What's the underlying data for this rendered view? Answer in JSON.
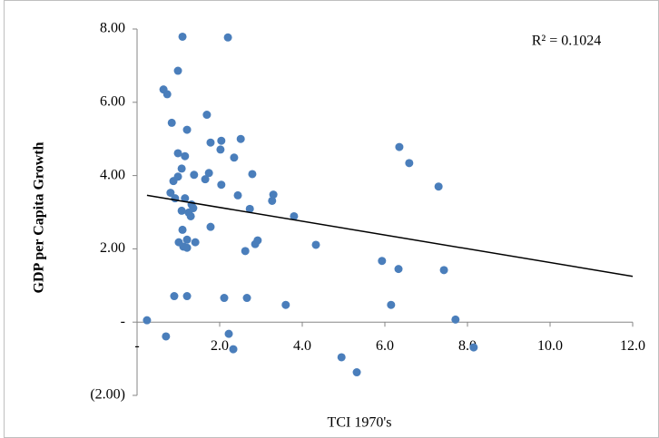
{
  "chart_data": {
    "type": "scatter",
    "x_label": "TCI 1970's",
    "y_label": "GDP per Capita Growth",
    "annotation": "R² = 0.1024",
    "color": "#4a7ebb",
    "x": [
      0.24,
      0.64,
      0.73,
      1.1,
      2.2,
      0.99,
      0.84,
      1.21,
      1.69,
      1.78,
      2.04,
      2.51,
      0.99,
      1.16,
      2.02,
      2.35,
      1.08,
      1.74,
      1.65,
      0.99,
      0.88,
      1.38,
      2.04,
      2.79,
      0.81,
      0.92,
      1.16,
      2.44,
      3.3,
      3.27,
      1.32,
      1.36,
      1.08,
      1.25,
      1.3,
      2.73,
      3.8,
      1.1,
      1.78,
      1.01,
      1.21,
      1.12,
      1.21,
      1.41,
      2.92,
      2.86,
      2.62,
      4.33,
      5.93,
      6.33,
      7.43,
      6.35,
      6.59,
      7.3,
      0.9,
      1.21,
      2.11,
      2.66,
      3.6,
      6.15,
      7.71,
      0.7,
      2.22,
      2.33,
      4.95,
      5.32,
      8.15
    ],
    "values": [
      0.05,
      6.35,
      6.22,
      7.79,
      7.77,
      6.86,
      5.44,
      5.25,
      5.66,
      4.9,
      4.95,
      5.0,
      4.61,
      4.53,
      4.71,
      4.49,
      4.19,
      4.07,
      3.9,
      3.97,
      3.85,
      4.02,
      3.75,
      4.04,
      3.53,
      3.38,
      3.38,
      3.46,
      3.48,
      3.31,
      3.21,
      3.11,
      3.04,
      2.99,
      2.89,
      3.09,
      2.89,
      2.52,
      2.6,
      2.18,
      2.25,
      2.06,
      2.03,
      2.18,
      2.23,
      2.13,
      1.94,
      2.11,
      1.67,
      1.45,
      1.42,
      4.78,
      4.34,
      3.7,
      0.71,
      0.71,
      0.66,
      0.66,
      0.47,
      0.47,
      0.07,
      -0.39,
      -0.32,
      -0.74,
      -0.96,
      -1.37,
      -0.69
    ],
    "trendline": {
      "x": [
        0.24,
        12
      ],
      "values": [
        3.46,
        1.25
      ]
    },
    "xlim": [
      0,
      12
    ],
    "xticks": [
      {
        "value": 0,
        "label": "-"
      },
      {
        "value": 2,
        "label": "2.0"
      },
      {
        "value": 4,
        "label": "4.0"
      },
      {
        "value": 6,
        "label": "6.0"
      },
      {
        "value": 8,
        "label": "8.0"
      },
      {
        "value": 10,
        "label": "10.0"
      },
      {
        "value": 12,
        "label": "12.0"
      }
    ],
    "ylim": [
      -2,
      8
    ],
    "yticks": [
      {
        "value": -2,
        "label": "(2.00)"
      },
      {
        "value": 0,
        "label": "-"
      },
      {
        "value": 2,
        "label": "2.00"
      },
      {
        "value": 4,
        "label": "4.00"
      },
      {
        "value": 6,
        "label": "6.00"
      },
      {
        "value": 8,
        "label": "8.00"
      }
    ],
    "grid": false
  }
}
